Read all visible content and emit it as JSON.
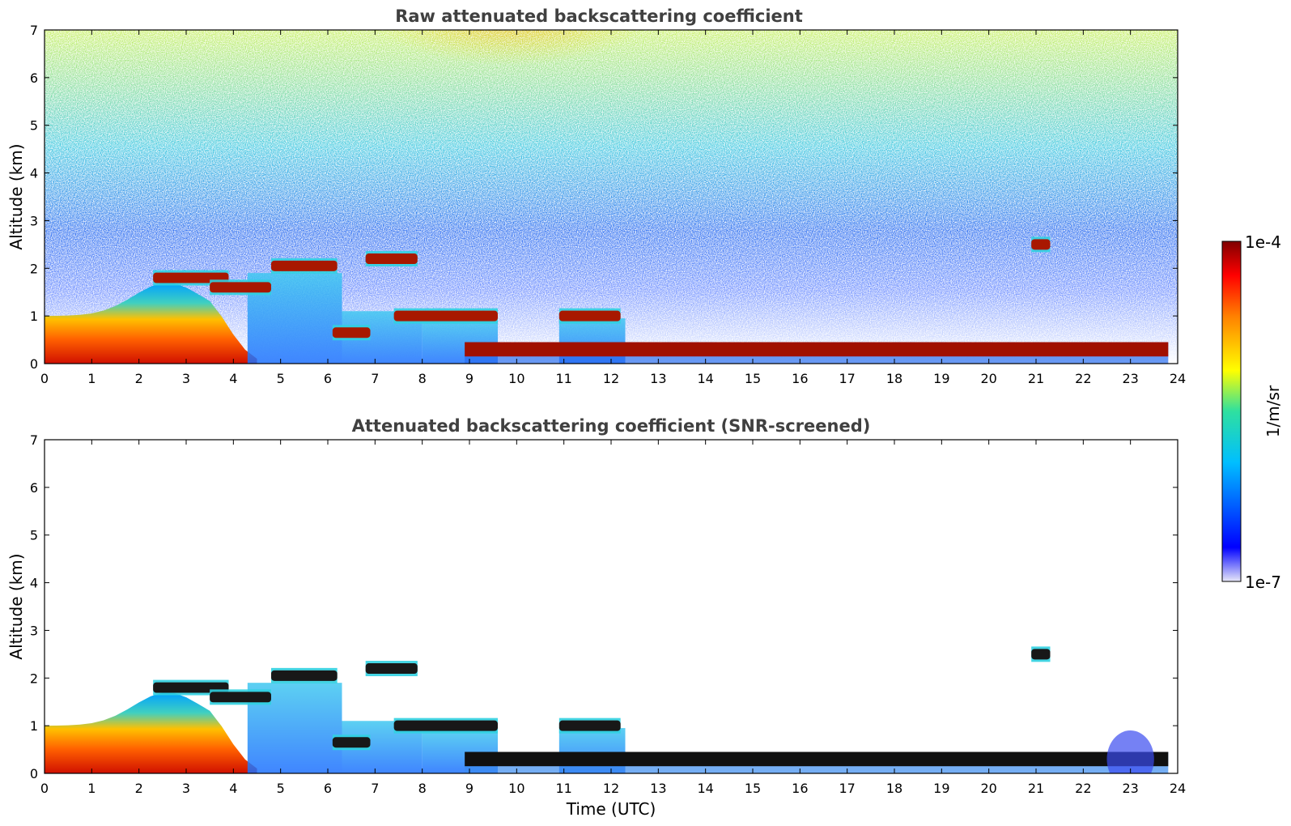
{
  "chart_data": [
    {
      "type": "heatmap",
      "title": "Raw attenuated backscattering coefficient",
      "xlabel": "",
      "ylabel": "Altitude (km)",
      "xlim": [
        0,
        24
      ],
      "ylim": [
        0,
        7
      ],
      "xticks": [
        "0",
        "1",
        "2",
        "3",
        "4",
        "5",
        "6",
        "7",
        "8",
        "9",
        "10",
        "11",
        "12",
        "13",
        "14",
        "15",
        "16",
        "17",
        "18",
        "19",
        "20",
        "21",
        "22",
        "23",
        "24"
      ],
      "yticks": [
        "0",
        "1",
        "2",
        "3",
        "4",
        "5",
        "6",
        "7"
      ],
      "features": [
        {
          "name": "boundary-layer",
          "t_start": 0,
          "t_end": 4.5,
          "alt_top": 1.0
        },
        {
          "name": "cloud",
          "t_start": 2.3,
          "t_end": 3.9,
          "alt": 1.8
        },
        {
          "name": "cloud",
          "t_start": 3.5,
          "t_end": 4.8,
          "alt": 1.6
        },
        {
          "name": "cloud",
          "t_start": 4.8,
          "t_end": 6.2,
          "alt": 2.05
        },
        {
          "name": "cloud",
          "t_start": 6.8,
          "t_end": 7.9,
          "alt": 2.2
        },
        {
          "name": "cloud",
          "t_start": 6.1,
          "t_end": 6.9,
          "alt": 0.65
        },
        {
          "name": "cloud",
          "t_start": 7.4,
          "t_end": 9.6,
          "alt": 1.0
        },
        {
          "name": "cloud",
          "t_start": 10.9,
          "t_end": 12.2,
          "alt": 1.0
        },
        {
          "name": "cloud",
          "t_start": 20.9,
          "t_end": 21.3,
          "alt": 2.5
        },
        {
          "name": "stratocumulus-layer",
          "t_start": 8.9,
          "t_end": 23.8,
          "alt_top": 0.45,
          "alt_bottom": 0.15
        }
      ]
    },
    {
      "type": "heatmap",
      "title": "Attenuated backscattering coefficient (SNR-screened)",
      "xlabel": "Time (UTC)",
      "ylabel": "Altitude (km)",
      "xlim": [
        0,
        24
      ],
      "ylim": [
        0,
        7
      ],
      "xticks": [
        "0",
        "1",
        "2",
        "3",
        "4",
        "5",
        "6",
        "7",
        "8",
        "9",
        "10",
        "11",
        "12",
        "13",
        "14",
        "15",
        "16",
        "17",
        "18",
        "19",
        "20",
        "21",
        "22",
        "23",
        "24"
      ],
      "yticks": [
        "0",
        "1",
        "2",
        "3",
        "4",
        "5",
        "6",
        "7"
      ]
    }
  ],
  "colorbar": {
    "label": "1/m/sr",
    "max_label": "1e-4",
    "min_label": "1e-7",
    "scale": "log",
    "colormap": "jet",
    "colors": [
      "#e8e8f8",
      "#0000ff",
      "#00bfff",
      "#2ee0a0",
      "#ffff00",
      "#ff8000",
      "#ff0000",
      "#800000"
    ]
  }
}
